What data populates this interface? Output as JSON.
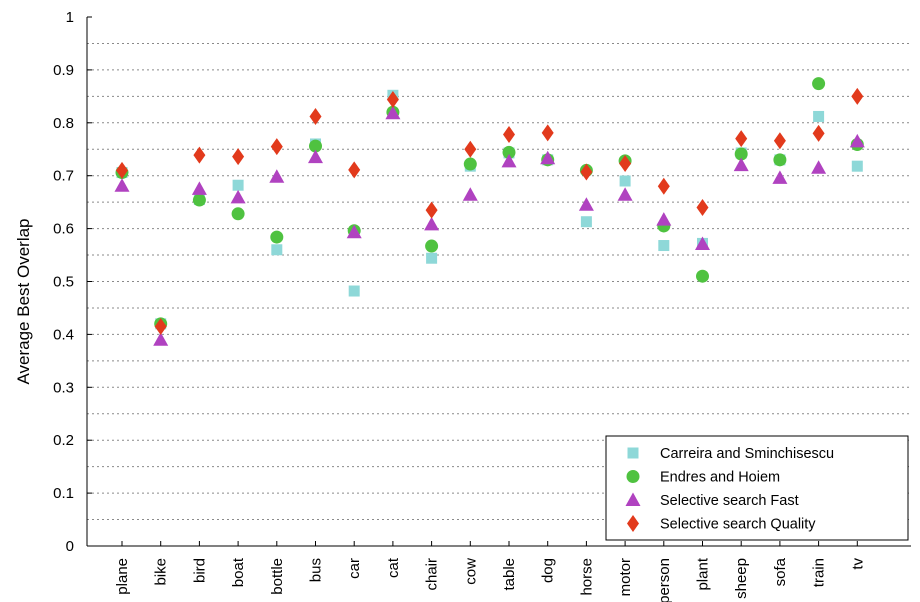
{
  "chart_data": {
    "type": "scatter",
    "ylabel": "Average Best Overlap",
    "xlabel": "",
    "ylim": [
      0,
      1
    ],
    "yticks": [
      "0",
      "0.1",
      "0.2",
      "0.3",
      "0.4",
      "0.5",
      "0.6",
      "0.7",
      "0.8",
      "0.9",
      "1"
    ],
    "grid": "dotted horizontal lines every 0.05",
    "legend_position": "bottom-right",
    "categories": [
      "plane",
      "bike",
      "bird",
      "boat",
      "bottle",
      "bus",
      "car",
      "cat",
      "chair",
      "cow",
      "table",
      "dog",
      "horse",
      "motor",
      "person",
      "plant",
      "sheep",
      "sofa",
      "train",
      "tv"
    ],
    "series": [
      {
        "name": "Carreira and Sminchisescu",
        "marker": "square",
        "color": "#8ed8d8",
        "values": [
          0.706,
          0.42,
          0.655,
          0.682,
          0.56,
          0.76,
          0.482,
          0.852,
          0.544,
          0.718,
          0.743,
          0.73,
          0.613,
          0.69,
          0.568,
          0.572,
          0.743,
          0.73,
          0.812,
          0.718
        ]
      },
      {
        "name": "Endres and Hoiem",
        "marker": "circle",
        "color": "#4fc240",
        "values": [
          0.706,
          0.42,
          0.654,
          0.628,
          0.584,
          0.756,
          0.596,
          0.82,
          0.567,
          0.722,
          0.744,
          0.73,
          0.71,
          0.728,
          0.605,
          0.51,
          0.741,
          0.73,
          0.874,
          0.759
        ]
      },
      {
        "name": "Selective search Fast",
        "marker": "triangle",
        "color": "#b042c0",
        "values": [
          0.681,
          0.39,
          0.675,
          0.659,
          0.698,
          0.735,
          0.593,
          0.818,
          0.608,
          0.664,
          0.727,
          0.733,
          0.645,
          0.664,
          0.617,
          0.571,
          0.72,
          0.696,
          0.715,
          0.765
        ]
      },
      {
        "name": "Selective search Quality",
        "marker": "diamond",
        "color": "#e23a1c",
        "values": [
          0.71,
          0.415,
          0.739,
          0.736,
          0.755,
          0.812,
          0.711,
          0.844,
          0.635,
          0.75,
          0.778,
          0.781,
          0.707,
          0.723,
          0.68,
          0.64,
          0.77,
          0.766,
          0.78,
          0.85
        ]
      }
    ]
  }
}
